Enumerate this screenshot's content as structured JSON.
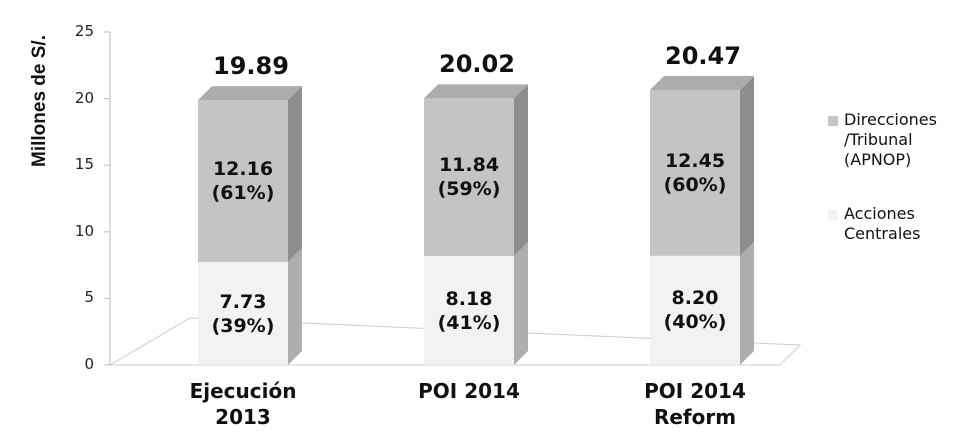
{
  "chart_data": {
    "type": "bar3d_stacked",
    "y_label": "Millones de S/.",
    "categories": [
      "Ejecución 2013",
      "POI 2014",
      "POI 2014 Reform"
    ],
    "series": [
      {
        "name": "Acciones Centrales",
        "color": "#f2f2f2",
        "values": [
          7.73,
          8.18,
          8.2
        ],
        "value_labels": [
          "7.73 (39%)",
          "8.18 (41%)",
          "8.20 (40%)"
        ]
      },
      {
        "name": "Direcciones /Tribunal (APNOP)",
        "color": "#c4c4c4",
        "values": [
          12.16,
          11.84,
          12.45
        ],
        "value_labels": [
          "12.16 (61%)",
          "11.84 (59%)",
          "12.45 (60%)"
        ]
      }
    ],
    "totals": [
      19.89,
      20.02,
      20.47
    ],
    "ylim": [
      0,
      25
    ],
    "yticks": [
      0,
      5,
      10,
      15,
      20,
      25
    ],
    "legend": "right"
  }
}
